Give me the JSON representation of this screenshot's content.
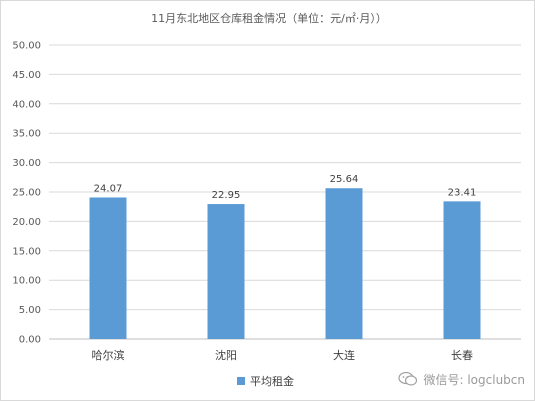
{
  "chart_data": {
    "type": "bar",
    "title": "11月东北地区仓库租金情况（单位：元/㎡·月））",
    "categories": [
      "哈尔滨",
      "沈阳",
      "大连",
      "长春"
    ],
    "series": [
      {
        "name": "平均租金",
        "values": [
          24.07,
          22.95,
          25.64,
          23.41
        ]
      }
    ],
    "data_labels": [
      "24.07",
      "22.95",
      "25.64",
      "23.41"
    ],
    "y_ticks": [
      "0.00",
      "5.00",
      "10.00",
      "15.00",
      "20.00",
      "25.00",
      "30.00",
      "35.00",
      "40.00",
      "45.00",
      "50.00"
    ],
    "ylim": [
      0,
      50
    ],
    "grid": true,
    "legend_position": "bottom",
    "bar_color": "#5b9bd5"
  },
  "watermark": {
    "text": "微信号: logclubcn"
  }
}
